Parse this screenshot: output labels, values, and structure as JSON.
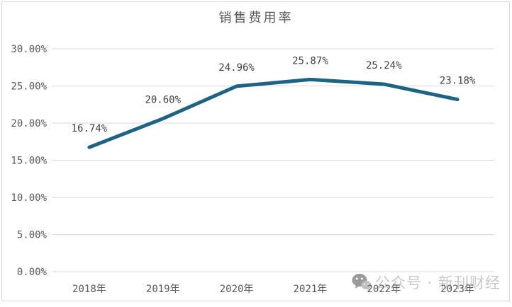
{
  "title": "销售费用率",
  "watermark": {
    "icon": "wechat-icon",
    "text": "公众号 · 新刊财经"
  },
  "chart_data": {
    "type": "line",
    "title": "销售费用率",
    "categories": [
      "2018年",
      "2019年",
      "2020年",
      "2021年",
      "2022年",
      "2023年"
    ],
    "values": [
      16.74,
      20.6,
      24.96,
      25.87,
      25.24,
      23.18
    ],
    "point_labels": [
      "16.74%",
      "20.60%",
      "24.96%",
      "25.87%",
      "25.24%",
      "23.18%"
    ],
    "xlabel": "",
    "ylabel": "",
    "ylim": [
      0,
      30
    ],
    "ytick_step": 5,
    "ytick_labels": [
      "0.00%",
      "5.00%",
      "10.00%",
      "15.00%",
      "20.00%",
      "25.00%",
      "30.00%"
    ],
    "grid": true,
    "legend": "none",
    "line_color": "#1e6383",
    "line_width": 5,
    "gridline_color": "#d9d9d9",
    "axis_text_color": "#595959",
    "data_label_color": "#404040",
    "watermark_color": "#c8c8c8"
  }
}
